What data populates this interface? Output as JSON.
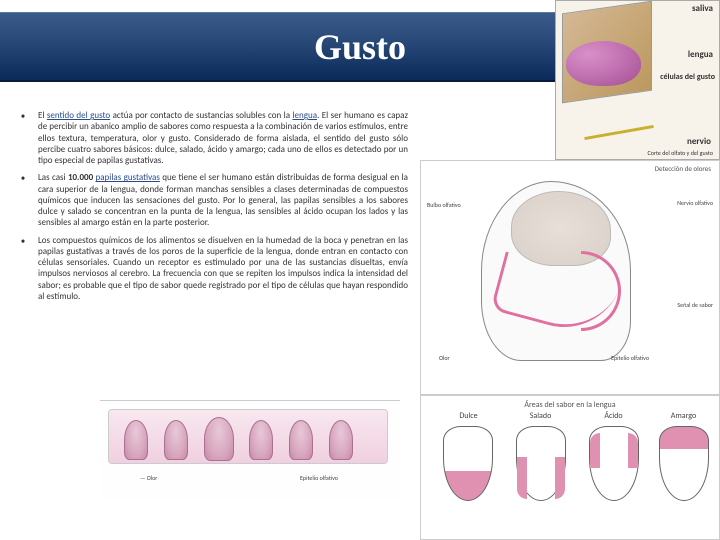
{
  "title": "Gusto",
  "bullets": [
    {
      "pre": "El ",
      "link1": "sentido del gusto",
      "mid": " actúa por contacto de sustancias solubles con la ",
      "link2": "lengua",
      "post": ". El ser humano es capaz de percibir un abanico amplio de sabores como respuesta a la combinación de varios estímulos, entre ellos textura, temperatura, olor y gusto. Considerado de forma aislada, el sentido del gusto sólo percibe cuatro sabores básicos: dulce, salado, ácido y amargo; cada uno de ellos es detectado por un tipo especial de papilas gustativas."
    },
    {
      "pre": "Las casi ",
      "bold": "10.000 ",
      "link1": "papilas gustativas",
      "post": " que tiene el ser humano están distribuidas de forma desigual en la cara superior de la lengua, donde forman manchas sensibles a clases determinadas de compuestos químicos que inducen las sensaciones del gusto. Por lo general, las papilas sensibles a los sabores dulce y salado se concentran en la punta de la lengua, las sensibles al ácido ocupan los lados y las sensibles al amargo están en la parte posterior."
    },
    {
      "post": "Los compuestos químicos de los alimentos se disuelven en la humedad de la boca y penetran en las papilas gustativas a través de los poros de la superficie de la lengua, donde entran en contacto con células sensoriales. Cuando un receptor es estimulado por una de las sustancias disueltas, envía impulsos nerviosos al cerebro. La frecuencia con que se repiten los impulsos indica la intensidad del sabor; es probable que el tipo de sabor quede registrado por el tipo de células que hayan respondido al estímulo."
    }
  ],
  "top_labels": {
    "saliva": "saliva",
    "lengua": "lengua",
    "celulas": "células\ndel\ngusto",
    "nervio": "nervio",
    "caption": "Corte del olfato y del gusto"
  },
  "head_labels": {
    "header": "Detección de olores",
    "l1": "Bulbo olfativo",
    "l2": "Nervio olfativo",
    "l3": "Señal de sabor",
    "l4": "Olor",
    "l5": "Epitelio olfativo"
  },
  "papilas_labels": {
    "l1": "— Olor",
    "l2": "Epitelio olfativo"
  },
  "taste_areas": {
    "title": "Áreas del sabor en la lengua",
    "dulce": "Dulce",
    "salado": "Salado",
    "acido": "Ácido",
    "amargo": "Amargo"
  },
  "colors": {
    "title_bg_top": "#3a5a8a",
    "title_bg_bottom": "#0a2a5a",
    "link": "#2a4a8a",
    "tongue_pink": "#e090b0"
  }
}
